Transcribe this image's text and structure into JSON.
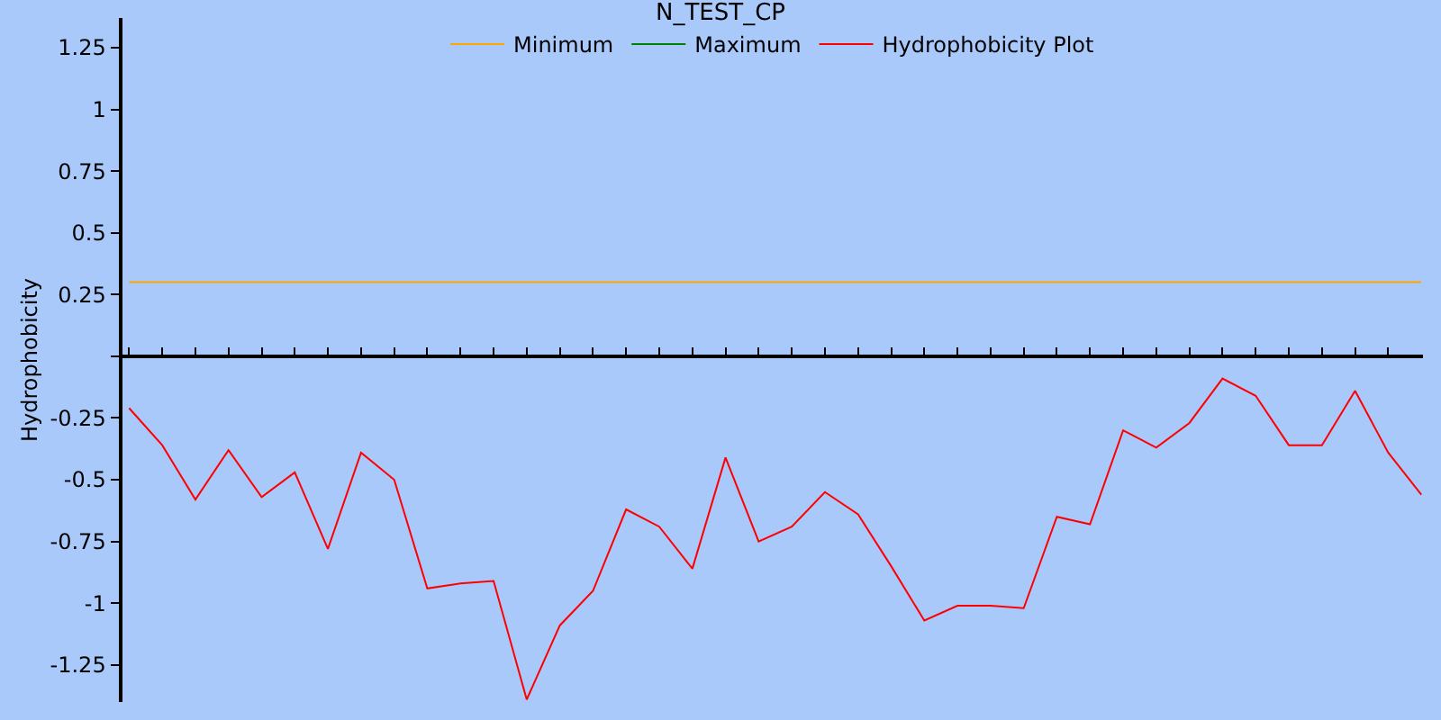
{
  "chart_data": {
    "type": "line",
    "title": "N_TEST_CP",
    "ylabel": "Hydrophobicity",
    "categories": [
      null,
      null,
      null,
      null,
      null,
      null,
      null,
      null,
      null,
      null,
      null,
      null,
      null,
      null,
      null,
      null,
      null,
      null,
      null,
      null,
      null,
      null,
      null,
      null,
      null,
      null,
      null,
      null,
      null,
      null,
      null,
      null,
      null,
      null,
      null,
      null,
      null,
      null,
      null,
      null
    ],
    "series": [
      {
        "name": "Minimum",
        "color": "#ffa500",
        "values": [
          0.3,
          0.3,
          0.3,
          0.3,
          0.3,
          0.3,
          0.3,
          0.3,
          0.3,
          0.3,
          0.3,
          0.3,
          0.3,
          0.3,
          0.3,
          0.3,
          0.3,
          0.3,
          0.3,
          0.3,
          0.3,
          0.3,
          0.3,
          0.3,
          0.3,
          0.3,
          0.3,
          0.3,
          0.3,
          0.3,
          0.3,
          0.3,
          0.3,
          0.3,
          0.3,
          0.3,
          0.3,
          0.3,
          0.3,
          0.3
        ]
      },
      {
        "name": "Maximum",
        "color": "#008000",
        "values": [
          null,
          null,
          null,
          null,
          null,
          null,
          null,
          null,
          null,
          null,
          null,
          null,
          null,
          null,
          null,
          null,
          null,
          null,
          null,
          null,
          null,
          null,
          null,
          null,
          null,
          null,
          null,
          null,
          null,
          null,
          null,
          null,
          null,
          null,
          null,
          null,
          null,
          null,
          null,
          null
        ]
      },
      {
        "name": "Hydrophobicity Plot",
        "color": "#ff0000",
        "values": [
          -0.21,
          -0.36,
          -0.58,
          -0.38,
          -0.57,
          -0.47,
          -0.78,
          -0.39,
          -0.5,
          -0.94,
          -0.92,
          -0.91,
          -1.39,
          -1.09,
          -0.95,
          -0.62,
          -0.69,
          -0.86,
          -0.41,
          -0.75,
          -0.69,
          -0.55,
          -0.64,
          -0.85,
          -1.07,
          -1.01,
          -1.01,
          -1.02,
          -0.65,
          -0.68,
          -0.3,
          -0.37,
          -0.27,
          -0.09,
          -0.16,
          -0.36,
          -0.36,
          -0.14,
          -0.39,
          -0.56
        ]
      }
    ],
    "ylim": [
      -1.4,
      1.37
    ],
    "yticks": [
      -1.25,
      -1,
      -0.75,
      -0.5,
      -0.25,
      {
        "value": 0,
        "label": null
      },
      0.25,
      0.5,
      0.75,
      1,
      1.25
    ],
    "legend": "top",
    "marker": "none",
    "line_style": "solid"
  }
}
